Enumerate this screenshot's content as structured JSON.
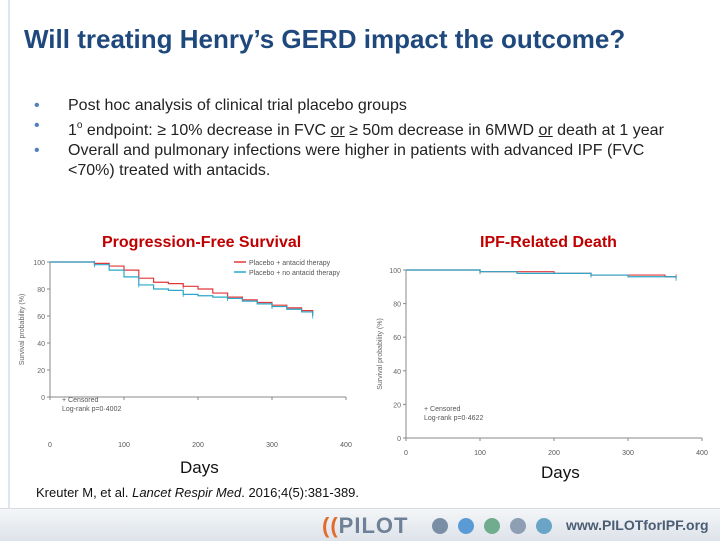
{
  "slide": {
    "title": "Will treating Henry’s GERD impact the outcome?",
    "bullets": {
      "b1": "Post hoc analysis of clinical trial placebo groups",
      "b2_a": "1",
      "b2_sup": "o",
      "b2_b": " endpoint: ≥ 10% decrease in FVC ",
      "b2_or1": "or",
      "b2_c": " ≥ 50m decrease in 6MWD ",
      "b2_or2": "or",
      "b2_d": " death at 1 year",
      "b3": "Overall and pulmonary infections were higher in patients with advanced IPF (FVC <70%) treated with antacids."
    },
    "citation": {
      "authors": "Kreuter M, et al. ",
      "journal": "Lancet Respir Med",
      "rest": ". 2016;4(5):381-389."
    },
    "footer": {
      "logo": "PILOT",
      "url": "www.PILOTforIPF.org"
    }
  },
  "colors": {
    "title": "#1f497d",
    "chart_title": "#c00000",
    "antacid": "#e0383a",
    "no_antacid": "#2aa7c9",
    "bullet": "#4f81bd"
  },
  "icons": [
    "lungs-icon",
    "globe-icon",
    "network-icon",
    "people-icon",
    "molecule-icon"
  ],
  "chart_data": [
    {
      "type": "line",
      "title": "Progression-Free Survival",
      "xlabel": "Days",
      "ylabel": "Survival probability (%)",
      "xlim": [
        0,
        400
      ],
      "ylim": [
        0,
        100
      ],
      "xticks": [
        0,
        100,
        200,
        300,
        400
      ],
      "yticks": [
        0,
        20,
        40,
        60,
        80,
        100
      ],
      "legend": "top-right",
      "annotations": [
        "+ Censored",
        "Log-rank p=0·4002"
      ],
      "series": [
        {
          "name": "Placebo + antacid therapy",
          "color": "#e0383a",
          "x": [
            0,
            40,
            60,
            80,
            100,
            120,
            140,
            160,
            180,
            200,
            220,
            240,
            260,
            280,
            300,
            320,
            340,
            355
          ],
          "y": [
            100,
            100,
            99,
            97,
            94,
            88,
            85,
            84,
            82,
            80,
            77,
            74,
            72,
            70,
            68,
            66,
            64,
            62
          ]
        },
        {
          "name": "Placebo + no antacid therapy",
          "color": "#2aa7c9",
          "x": [
            0,
            40,
            60,
            80,
            100,
            120,
            140,
            160,
            180,
            200,
            220,
            240,
            260,
            280,
            300,
            320,
            340,
            355
          ],
          "y": [
            100,
            100,
            98,
            94,
            89,
            83,
            80,
            79,
            76,
            75,
            74,
            73,
            71,
            69,
            67,
            65,
            63,
            60
          ]
        }
      ]
    },
    {
      "type": "line",
      "title": "IPF-Related Death",
      "xlabel": "Days",
      "ylabel": "Survival probability (%)",
      "xlim": [
        0,
        400
      ],
      "ylim": [
        0,
        100
      ],
      "xticks": [
        0,
        100,
        200,
        300,
        400
      ],
      "yticks": [
        0,
        20,
        40,
        60,
        80,
        100
      ],
      "annotations": [
        "+ Censored",
        "Log-rank p=0·4622"
      ],
      "series": [
        {
          "name": "Placebo + antacid therapy",
          "color": "#e0383a",
          "x": [
            0,
            50,
            100,
            150,
            200,
            250,
            300,
            350,
            365
          ],
          "y": [
            100,
            100,
            99,
            99,
            98,
            97,
            97,
            96,
            96
          ]
        },
        {
          "name": "Placebo + no antacid therapy",
          "color": "#2aa7c9",
          "x": [
            0,
            50,
            100,
            150,
            200,
            250,
            300,
            350,
            365
          ],
          "y": [
            100,
            100,
            99,
            98,
            98,
            97,
            96,
            96,
            95
          ]
        }
      ]
    }
  ]
}
